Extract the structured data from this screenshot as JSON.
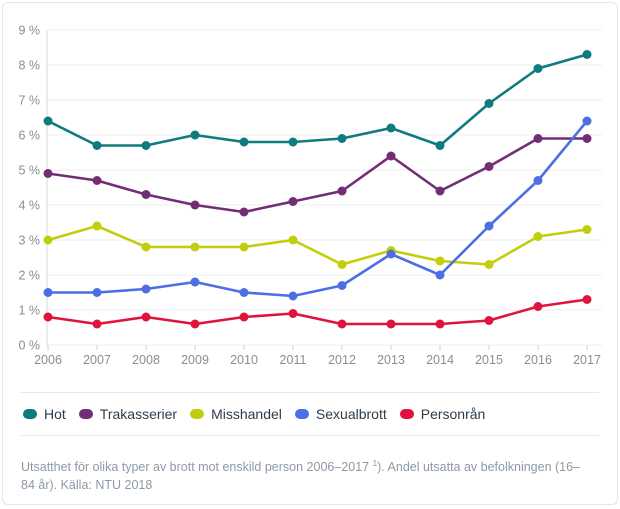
{
  "chart_data": {
    "type": "line",
    "title": "",
    "categories": [
      "2006",
      "2007",
      "2008",
      "2009",
      "2010",
      "2011",
      "2012",
      "2013",
      "2014",
      "2015",
      "2016",
      "2017"
    ],
    "series": [
      {
        "id": "hot",
        "name": "Hot",
        "color": "#0e7c7e",
        "values": [
          6.4,
          5.7,
          5.7,
          6.0,
          5.8,
          5.8,
          5.9,
          6.2,
          5.7,
          6.9,
          7.9,
          8.3
        ]
      },
      {
        "id": "trakasserier",
        "name": "Trakasserier",
        "color": "#722d76",
        "values": [
          4.9,
          4.7,
          4.3,
          4.0,
          3.8,
          4.1,
          4.4,
          5.4,
          4.4,
          5.1,
          5.9,
          5.9
        ]
      },
      {
        "id": "misshandel",
        "name": "Misshandel",
        "color": "#c2ce0c",
        "values": [
          3.0,
          3.4,
          2.8,
          2.8,
          2.8,
          3.0,
          2.3,
          2.7,
          2.4,
          2.3,
          3.1,
          3.3
        ]
      },
      {
        "id": "sexualbrott",
        "name": "Sexualbrott",
        "color": "#4c6fe4",
        "values": [
          1.5,
          1.5,
          1.6,
          1.8,
          1.5,
          1.4,
          1.7,
          2.6,
          2.0,
          3.4,
          4.7,
          6.4
        ]
      },
      {
        "id": "personran",
        "name": "Personrån",
        "color": "#e0133e",
        "values": [
          0.8,
          0.6,
          0.8,
          0.6,
          0.8,
          0.9,
          0.6,
          0.6,
          0.6,
          0.7,
          1.1,
          1.3
        ]
      }
    ],
    "xlabel": "",
    "ylabel": "",
    "ylim": [
      0,
      9
    ],
    "y_tick_step": 1,
    "y_tick_format": "{v} %",
    "grid": true,
    "legend_position": "bottom"
  },
  "caption": {
    "part1": "Utsatthet för olika typer av brott mot enskild person 2006–2017 ",
    "superscript": "1",
    "part2": "). Andel utsatta av befolkningen (16–84 år). Källa: NTU 2018"
  }
}
